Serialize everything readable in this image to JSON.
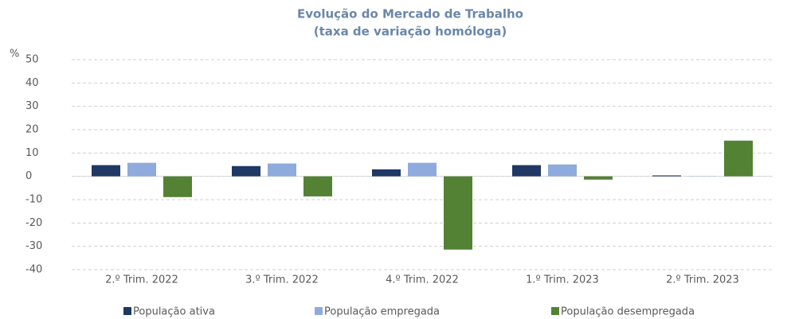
{
  "chart_data": {
    "type": "bar",
    "title": "Evolução do Mercado de Trabalho",
    "subtitle": "(taxa de variação homóloga)",
    "y_label": "%",
    "categories": [
      "2.º Trim. 2022",
      "3.º Trim. 2022",
      "4.º Trim. 2022",
      "1.º Trim. 2023",
      "2.º Trim. 2023"
    ],
    "series": [
      {
        "name": "População ativa",
        "color": "#1f3864",
        "values": [
          4.8,
          4.4,
          3.0,
          4.8,
          0.4
        ]
      },
      {
        "name": "População empregada",
        "color": "#8faadc",
        "values": [
          5.8,
          5.5,
          5.8,
          5.1,
          0.1
        ]
      },
      {
        "name": "População desempregada",
        "color": "#548235",
        "values": [
          -8.9,
          -8.6,
          -31.4,
          -1.4,
          15.3
        ]
      }
    ],
    "ylim": [
      -40,
      50
    ],
    "yticks": [
      -40,
      -30,
      -20,
      -10,
      0,
      10,
      20,
      30,
      40,
      50
    ],
    "grid": true,
    "legend": "bottom"
  }
}
